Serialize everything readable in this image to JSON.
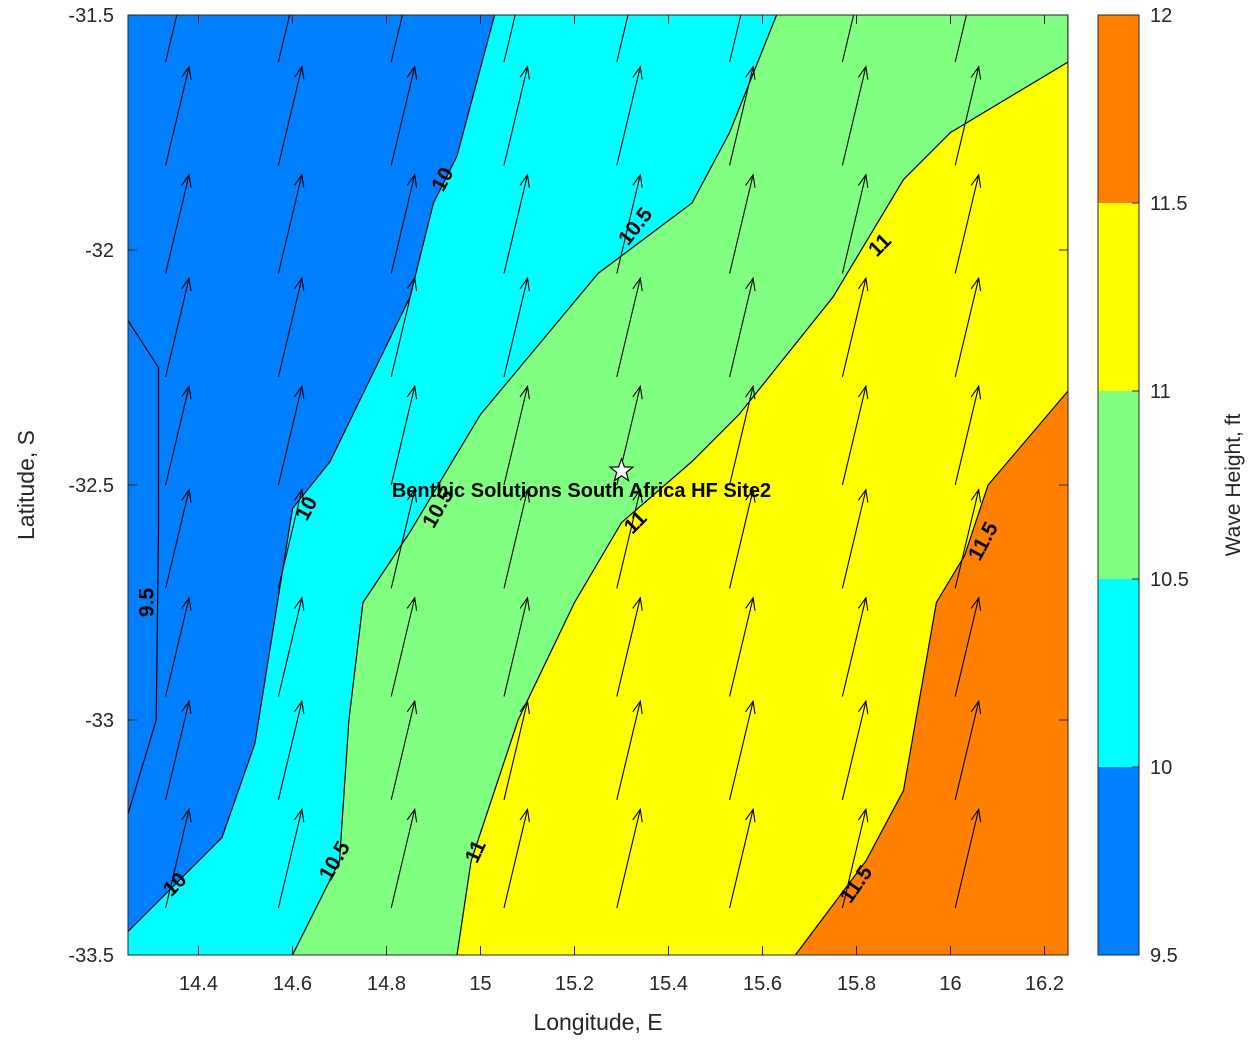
{
  "chart_data": {
    "type": "contourf",
    "xlabel": "Longitude, E",
    "ylabel": "Latitude, S",
    "xlim": [
      14.25,
      16.25
    ],
    "ylim": [
      -33.5,
      -31.5
    ],
    "xticks": [
      14.4,
      14.6,
      14.8,
      15,
      15.2,
      15.4,
      15.6,
      15.8,
      16,
      16.2
    ],
    "yticks": [
      -31.5,
      -32,
      -32.5,
      -33,
      -33.5
    ],
    "colorbar": {
      "label": "Wave Height, ft",
      "range": [
        9.5,
        12
      ],
      "ticks": [
        9.5,
        10,
        10.5,
        11,
        11.5,
        12
      ],
      "bands": [
        {
          "from": 9.5,
          "to": 10,
          "color": "#0080ff"
        },
        {
          "from": 10,
          "to": 10.5,
          "color": "#00ffff"
        },
        {
          "from": 10.5,
          "to": 11,
          "color": "#80ff80"
        },
        {
          "from": 11,
          "to": 11.5,
          "color": "#ffff00"
        },
        {
          "from": 11.5,
          "to": 12,
          "color": "#ff8000"
        }
      ]
    },
    "contours": [
      {
        "level": 10,
        "color": "#0080ff",
        "points": [
          [
            14.25,
            -33.45
          ],
          [
            14.45,
            -33.25
          ],
          [
            14.52,
            -33.05
          ],
          [
            14.6,
            -32.55
          ],
          [
            14.68,
            -32.45
          ],
          [
            14.85,
            -32.1
          ],
          [
            14.9,
            -31.9
          ],
          [
            14.95,
            -31.8
          ],
          [
            15.03,
            -31.5
          ]
        ]
      },
      {
        "level": 10.5,
        "color": "#00ffff",
        "points": [
          [
            14.6,
            -33.5
          ],
          [
            14.7,
            -33.3
          ],
          [
            14.72,
            -33.0
          ],
          [
            14.75,
            -32.75
          ],
          [
            14.85,
            -32.6
          ],
          [
            15.0,
            -32.35
          ],
          [
            15.25,
            -32.05
          ],
          [
            15.45,
            -31.9
          ],
          [
            15.53,
            -31.75
          ],
          [
            15.63,
            -31.5
          ]
        ]
      },
      {
        "level": 11,
        "color": "#80ff80",
        "points": [
          [
            14.95,
            -33.5
          ],
          [
            14.98,
            -33.3
          ],
          [
            15.08,
            -33.0
          ],
          [
            15.2,
            -32.75
          ],
          [
            15.3,
            -32.58
          ],
          [
            15.45,
            -32.45
          ],
          [
            15.55,
            -32.35
          ],
          [
            15.75,
            -32.1
          ],
          [
            15.9,
            -31.85
          ],
          [
            16.0,
            -31.75
          ],
          [
            16.25,
            -31.6
          ],
          [
            16.25,
            -31.5
          ]
        ]
      },
      {
        "level": 11.5,
        "color": "#ffff00",
        "points": [
          [
            15.67,
            -33.5
          ],
          [
            15.82,
            -33.3
          ],
          [
            15.9,
            -33.15
          ],
          [
            15.97,
            -32.75
          ],
          [
            16.03,
            -32.65
          ],
          [
            16.08,
            -32.5
          ],
          [
            16.25,
            -32.3
          ],
          [
            16.25,
            -31.5
          ]
        ]
      }
    ],
    "small_contour": {
      "level": 9.5,
      "points": [
        [
          14.25,
          -32.15
        ],
        [
          14.315,
          -32.25
        ],
        [
          14.315,
          -32.6
        ],
        [
          14.31,
          -33.0
        ],
        [
          14.25,
          -33.2
        ]
      ]
    },
    "contour_labels": [
      {
        "text": "10",
        "x": 14.92,
        "y": -31.85,
        "angle": -62
      },
      {
        "text": "10.5",
        "x": 15.33,
        "y": -31.95,
        "angle": -52
      },
      {
        "text": "11",
        "x": 15.85,
        "y": -31.99,
        "angle": -45
      },
      {
        "text": "10",
        "x": 14.63,
        "y": -32.55,
        "angle": -62
      },
      {
        "text": "10.5",
        "x": 14.91,
        "y": -32.55,
        "angle": -60
      },
      {
        "text": "11",
        "x": 15.33,
        "y": -32.58,
        "angle": -45
      },
      {
        "text": "11.5",
        "x": 16.07,
        "y": -32.62,
        "angle": -62
      },
      {
        "text": "9.5",
        "x": 14.29,
        "y": -32.75,
        "angle": -90
      },
      {
        "text": "10",
        "x": 14.35,
        "y": -33.35,
        "angle": -45
      },
      {
        "text": "10.5",
        "x": 14.69,
        "y": -33.3,
        "angle": -60
      },
      {
        "text": "11",
        "x": 14.99,
        "y": -33.28,
        "angle": -65
      },
      {
        "text": "11.5",
        "x": 15.8,
        "y": -33.35,
        "angle": -55
      }
    ],
    "vectors": {
      "x": [
        14.33,
        14.57,
        14.81,
        15.05,
        15.29,
        15.53,
        15.77,
        16.01
      ],
      "y": [
        -31.6,
        -31.82,
        -32.05,
        -32.27,
        -32.5,
        -32.72,
        -32.95,
        -33.17,
        -33.4
      ],
      "dx": 0.05,
      "dy": 0.21
    },
    "site": {
      "name": "Benthic Solutions South Africa HF Site2",
      "lon": 15.3,
      "lat": -32.47
    }
  }
}
